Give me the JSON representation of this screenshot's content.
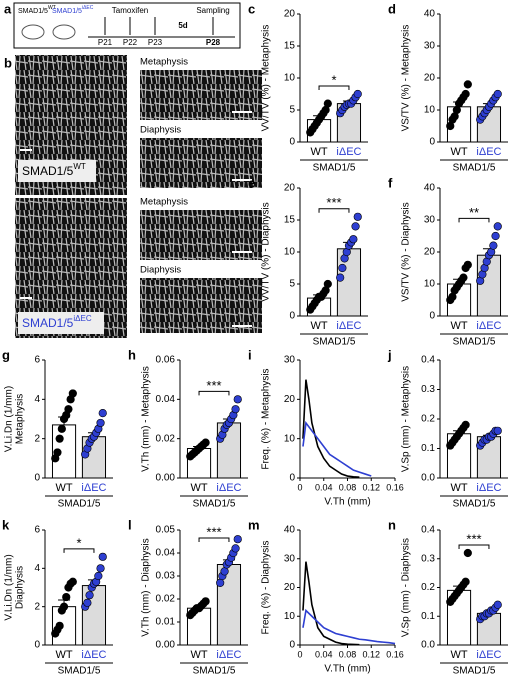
{
  "timeline": {
    "panel": "a",
    "groups": [
      {
        "name": "SMAD1/5",
        "sup": "WT"
      },
      {
        "name": "SMAD1/5",
        "sup": "iΔEC"
      }
    ],
    "treatment": "Tamoxifen",
    "interval": "5d",
    "endpoint": "Sampling",
    "days": [
      "P21",
      "P22",
      "P23",
      "P28"
    ]
  },
  "images": {
    "panel": "b",
    "labels": [
      {
        "name": "SMAD1/5",
        "sup": "WT"
      },
      {
        "name": "SMAD1/5",
        "sup": "iΔEC"
      }
    ],
    "regions": [
      "Metaphysis",
      "Diaphysis",
      "Metaphysis",
      "Diaphysis"
    ]
  },
  "chart_data": [
    {
      "type": "bar",
      "panel": "c",
      "ylabel": "VV/TV (%) - Metaphysis",
      "categories": [
        "WT",
        "iΔEC"
      ],
      "group": "SMAD1/5",
      "values": [
        3.5,
        6
      ],
      "errors": [
        0.6,
        0.4
      ],
      "points": [
        [
          1.5,
          2,
          2.5,
          3,
          3.5,
          4,
          4.5,
          5,
          6
        ],
        [
          4.5,
          5,
          5.5,
          5.8,
          6,
          6,
          6.5,
          7,
          7.5
        ]
      ],
      "bar_fills": [
        "#ffffff",
        "#dcdcdc"
      ],
      "dot_colors": [
        "#000000",
        "#2e3fd1"
      ],
      "ylim": [
        0,
        20
      ],
      "yticks": [
        0,
        5,
        10,
        15,
        20
      ],
      "sig": "*"
    },
    {
      "type": "bar",
      "panel": "d",
      "ylabel": "VS/TV (%) - Metaphysis",
      "categories": [
        "WT",
        "iΔEC"
      ],
      "group": "SMAD1/5",
      "values": [
        11,
        11
      ],
      "errors": [
        1.5,
        1
      ],
      "points": [
        [
          5,
          7,
          8,
          10,
          12,
          13,
          14,
          15,
          18
        ],
        [
          7,
          8,
          9,
          10,
          11,
          12,
          13,
          14,
          15
        ]
      ],
      "bar_fills": [
        "#ffffff",
        "#dcdcdc"
      ],
      "dot_colors": [
        "#000000",
        "#2e3fd1"
      ],
      "ylim": [
        0,
        40
      ],
      "yticks": [
        0,
        10,
        20,
        30,
        40
      ]
    },
    {
      "type": "bar",
      "panel": "e",
      "ylabel": "VV/TV (%) - Diaphysis",
      "categories": [
        "WT",
        "iΔEC"
      ],
      "group": "SMAD1/5",
      "values": [
        2.8,
        10.5
      ],
      "errors": [
        0.5,
        1
      ],
      "points": [
        [
          1,
          1.5,
          2,
          2.5,
          3,
          3,
          3.5,
          4,
          5
        ],
        [
          6,
          7.5,
          9,
          10,
          11,
          11.5,
          12,
          14,
          15.5
        ]
      ],
      "bar_fills": [
        "#ffffff",
        "#dcdcdc"
      ],
      "dot_colors": [
        "#000000",
        "#2e3fd1"
      ],
      "ylim": [
        0,
        20
      ],
      "yticks": [
        0,
        5,
        10,
        15,
        20
      ],
      "sig": "***"
    },
    {
      "type": "bar",
      "panel": "f",
      "ylabel": "VS/TV (%) - Diaphysis",
      "categories": [
        "WT",
        "iΔEC"
      ],
      "group": "SMAD1/5",
      "values": [
        10,
        19
      ],
      "errors": [
        1.5,
        2
      ],
      "points": [
        [
          5,
          6,
          8,
          9,
          10,
          11,
          12,
          15,
          16
        ],
        [
          11,
          13,
          15,
          17,
          19,
          20,
          22,
          25,
          28
        ]
      ],
      "bar_fills": [
        "#ffffff",
        "#dcdcdc"
      ],
      "dot_colors": [
        "#000000",
        "#2e3fd1"
      ],
      "ylim": [
        0,
        40
      ],
      "yticks": [
        0,
        10,
        20,
        30,
        40
      ],
      "sig": "**"
    },
    {
      "type": "bar",
      "panel": "g",
      "ylabel": [
        "V.Li.Dn (1/mm)",
        "Metaphysis"
      ],
      "categories": [
        "WT",
        "iΔEC"
      ],
      "group": "SMAD1/5",
      "values": [
        2.7,
        2.1
      ],
      "errors": [
        0.4,
        0.2
      ],
      "points": [
        [
          1,
          1.3,
          2,
          2.5,
          3,
          3.2,
          3.5,
          4,
          4.3
        ],
        [
          1.2,
          1.5,
          1.8,
          2,
          2.1,
          2.3,
          2.5,
          2.8,
          3.3
        ]
      ],
      "bar_fills": [
        "#ffffff",
        "#dcdcdc"
      ],
      "dot_colors": [
        "#000000",
        "#2e3fd1"
      ],
      "ylim": [
        0,
        6
      ],
      "yticks": [
        0,
        2,
        4,
        6
      ]
    },
    {
      "type": "bar",
      "panel": "h",
      "ylabel": "V.Th (mm) - Metaphysis",
      "categories": [
        "WT",
        "iΔEC"
      ],
      "group": "SMAD1/5",
      "values": [
        0.015,
        0.028
      ],
      "errors": [
        0.001,
        0.002
      ],
      "points": [
        [
          0.011,
          0.012,
          0.013,
          0.014,
          0.015,
          0.016,
          0.017,
          0.018
        ],
        [
          0.02,
          0.022,
          0.025,
          0.027,
          0.028,
          0.03,
          0.032,
          0.035,
          0.04
        ]
      ],
      "bar_fills": [
        "#ffffff",
        "#dcdcdc"
      ],
      "dot_colors": [
        "#000000",
        "#2e3fd1"
      ],
      "ylim": [
        0,
        0.06
      ],
      "yticks": [
        {
          "value": 0,
          "label": "0.00"
        },
        0.02,
        0.04,
        0.06
      ],
      "sig": "***"
    },
    {
      "type": "line",
      "panel": "i",
      "ylabel": "Freq. (%) - Metaphysis",
      "xlabel": "V.Th (mm)",
      "xlim": [
        0,
        0.16
      ],
      "xticks": [
        0,
        0.04,
        0.08,
        0.12,
        0.16
      ],
      "ylim": [
        0,
        30
      ],
      "yticks": [
        0,
        10,
        20,
        30
      ],
      "series": [
        {
          "color": "#000000",
          "x": [
            0.005,
            0.01,
            0.015,
            0.02,
            0.03,
            0.04,
            0.05,
            0.06,
            0.07,
            0.08,
            0.09,
            0.1
          ],
          "values": [
            10,
            25,
            20,
            14,
            8,
            5,
            3,
            2,
            1,
            0.5,
            0.3,
            0.2
          ]
        },
        {
          "color": "#2e3fd1",
          "x": [
            0.005,
            0.01,
            0.015,
            0.02,
            0.03,
            0.04,
            0.05,
            0.06,
            0.07,
            0.08,
            0.09,
            0.1,
            0.11,
            0.12
          ],
          "values": [
            8,
            14,
            13,
            12,
            10,
            8,
            6,
            5,
            4,
            3,
            2,
            1.5,
            1,
            0.5
          ]
        }
      ]
    },
    {
      "type": "bar",
      "panel": "j",
      "ylabel": "V.Sp (mm) - Metaphysis",
      "categories": [
        "WT",
        "iΔEC"
      ],
      "group": "SMAD1/5",
      "values": [
        0.15,
        0.14
      ],
      "errors": [
        0.01,
        0.005
      ],
      "points": [
        [
          0.11,
          0.12,
          0.13,
          0.14,
          0.15,
          0.16,
          0.17,
          0.18
        ],
        [
          0.11,
          0.12,
          0.13,
          0.13,
          0.14,
          0.14,
          0.15,
          0.16,
          0.16
        ]
      ],
      "bar_fills": [
        "#ffffff",
        "#dcdcdc"
      ],
      "dot_colors": [
        "#000000",
        "#2e3fd1"
      ],
      "ylim": [
        0,
        0.4
      ],
      "yticks": [
        {
          "value": 0,
          "label": "0.0"
        },
        0.1,
        0.2,
        0.3,
        0.4
      ]
    },
    {
      "type": "bar",
      "panel": "k",
      "ylabel": [
        "V.Li.Dn (1/mm)",
        "Diaphysis"
      ],
      "categories": [
        "WT",
        "iΔEC"
      ],
      "group": "SMAD1/5",
      "values": [
        2,
        3.1
      ],
      "errors": [
        0.35,
        0.3
      ],
      "points": [
        [
          0.6,
          0.8,
          1,
          1.8,
          2,
          2.5,
          3,
          3.2,
          3.3
        ],
        [
          2,
          2.2,
          2.6,
          3,
          3.2,
          3.3,
          3.6,
          4,
          4.6
        ]
      ],
      "bar_fills": [
        "#ffffff",
        "#dcdcdc"
      ],
      "dot_colors": [
        "#000000",
        "#2e3fd1"
      ],
      "ylim": [
        0,
        6
      ],
      "yticks": [
        0,
        2,
        4,
        6
      ],
      "sig": "*"
    },
    {
      "type": "bar",
      "panel": "l",
      "ylabel": "V.Th (mm) - Diaphysis",
      "categories": [
        "WT",
        "iΔEC"
      ],
      "group": "SMAD1/5",
      "values": [
        0.016,
        0.035
      ],
      "errors": [
        0.0007,
        0.002
      ],
      "points": [
        [
          0.013,
          0.014,
          0.015,
          0.016,
          0.016,
          0.017,
          0.018,
          0.019
        ],
        [
          0.027,
          0.03,
          0.032,
          0.035,
          0.036,
          0.038,
          0.04,
          0.042,
          0.046
        ]
      ],
      "bar_fills": [
        "#ffffff",
        "#dcdcdc"
      ],
      "dot_colors": [
        "#000000",
        "#2e3fd1"
      ],
      "ylim": [
        0,
        0.05
      ],
      "yticks": [
        {
          "value": 0,
          "label": "0.00"
        },
        0.01,
        0.02,
        0.03,
        0.04,
        0.05
      ],
      "sig": "***"
    },
    {
      "type": "line",
      "panel": "m",
      "ylabel": "Freq. (%) - Diaphysis",
      "xlabel": "V.Th (mm)",
      "xlim": [
        0,
        0.16
      ],
      "xticks": [
        0,
        0.04,
        0.08,
        0.12,
        0.16
      ],
      "ylim": [
        0,
        40
      ],
      "yticks": [
        0,
        10,
        20,
        30,
        40
      ],
      "series": [
        {
          "color": "#000000",
          "x": [
            0.005,
            0.01,
            0.015,
            0.02,
            0.03,
            0.04,
            0.05,
            0.06,
            0.07,
            0.08,
            0.09,
            0.1
          ],
          "values": [
            12,
            29,
            22,
            14,
            6,
            3,
            2,
            1,
            0.5,
            0.3,
            0.2,
            0.1
          ]
        },
        {
          "color": "#2e3fd1",
          "x": [
            0.005,
            0.01,
            0.015,
            0.02,
            0.03,
            0.04,
            0.05,
            0.06,
            0.07,
            0.08,
            0.09,
            0.1,
            0.11,
            0.12,
            0.13,
            0.14,
            0.15,
            0.16
          ],
          "values": [
            6,
            12,
            11,
            10,
            8,
            6,
            5,
            4,
            3.5,
            3,
            2.5,
            2,
            1.8,
            1.5,
            1.2,
            1,
            0.8,
            0.5
          ]
        }
      ]
    },
    {
      "type": "bar",
      "panel": "n",
      "ylabel": "V.Sp (mm) - Diaphysis",
      "categories": [
        "WT",
        "iΔEC"
      ],
      "group": "SMAD1/5",
      "values": [
        0.19,
        0.11
      ],
      "errors": [
        0.015,
        0.005
      ],
      "points": [
        [
          0.15,
          0.16,
          0.17,
          0.18,
          0.19,
          0.2,
          0.21,
          0.22,
          0.32
        ],
        [
          0.09,
          0.1,
          0.1,
          0.11,
          0.11,
          0.12,
          0.12,
          0.13,
          0.14
        ]
      ],
      "bar_fills": [
        "#ffffff",
        "#dcdcdc"
      ],
      "dot_colors": [
        "#000000",
        "#2e3fd1"
      ],
      "ylim": [
        0,
        0.4
      ],
      "yticks": [
        {
          "value": 0,
          "label": "0.0"
        },
        0.1,
        0.2,
        0.3,
        0.4
      ],
      "sig": "***"
    }
  ]
}
